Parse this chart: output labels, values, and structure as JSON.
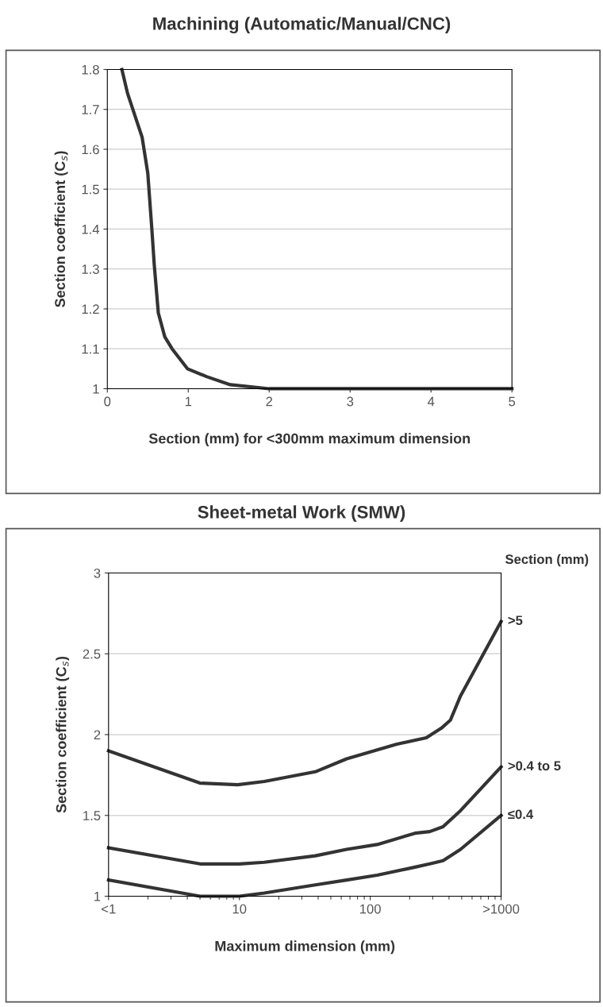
{
  "chart_data": [
    {
      "type": "line",
      "title": "Machining (Automatic/Manual/CNC)",
      "xlabel": "Section (mm) for <300mm maximum dimension",
      "ylabel": "Section coefficient (C$_{s}$)",
      "xlim": [
        0,
        5
      ],
      "xticks": [
        0,
        1,
        2,
        3,
        4,
        5
      ],
      "ylim": [
        1,
        1.8
      ],
      "yticks": [
        1,
        1.1,
        1.2,
        1.3,
        1.4,
        1.5,
        1.6,
        1.7,
        1.8
      ],
      "grid": "y",
      "legend": false,
      "series": [
        {
          "color": "#333333",
          "x": [
            0.18,
            0.25,
            0.43,
            0.5,
            0.55,
            0.58,
            0.63,
            0.71,
            0.8,
            0.99,
            1.23,
            1.52,
            2.0,
            5
          ],
          "values": [
            1.8,
            1.74,
            1.63,
            1.54,
            1.4,
            1.31,
            1.19,
            1.13,
            1.1,
            1.05,
            1.03,
            1.01,
            1.0,
            1.0
          ]
        }
      ]
    },
    {
      "type": "line",
      "title": "Sheet-metal Work (SMW)",
      "xlabel": "Maximum dimension (mm)",
      "ylabel": "Section coefficient (C$_{s}$)",
      "legend_title": "Section (mm)",
      "log": "x",
      "xlim": [
        1,
        1000
      ],
      "xticks": [
        {
          "value": 1,
          "label": "<1"
        },
        10,
        100,
        {
          "value": 1000,
          "label": ">1000"
        }
      ],
      "ylim": [
        1,
        3
      ],
      "yticks": [
        1,
        1.5,
        2,
        2.5,
        3
      ],
      "grid": "y",
      "legend": false,
      "series": [
        {
          "name": ">5",
          "color": "#333333",
          "x": [
            1,
            5,
            9.7,
            15.5,
            38,
            66,
            158,
            268,
            350,
            410,
            490,
            1000
          ],
          "values": [
            1.9,
            1.7,
            1.69,
            1.71,
            1.77,
            1.85,
            1.94,
            1.98,
            2.04,
            2.09,
            2.24,
            2.7
          ]
        },
        {
          "name": ">0.4 to 5",
          "color": "#333333",
          "x": [
            1,
            5,
            10,
            15.5,
            38,
            66,
            113,
            220,
            285,
            360,
            490,
            1000
          ],
          "values": [
            1.3,
            1.2,
            1.2,
            1.21,
            1.25,
            1.29,
            1.32,
            1.39,
            1.4,
            1.43,
            1.53,
            1.8
          ]
        },
        {
          "name": "≤0.4",
          "color": "#333333",
          "x": [
            1,
            5,
            10,
            15.5,
            38,
            66,
            113,
            220,
            285,
            360,
            490,
            1000
          ],
          "values": [
            1.1,
            1.0,
            1.0,
            1.02,
            1.07,
            1.1,
            1.13,
            1.18,
            1.2,
            1.22,
            1.29,
            1.5
          ]
        }
      ]
    }
  ]
}
